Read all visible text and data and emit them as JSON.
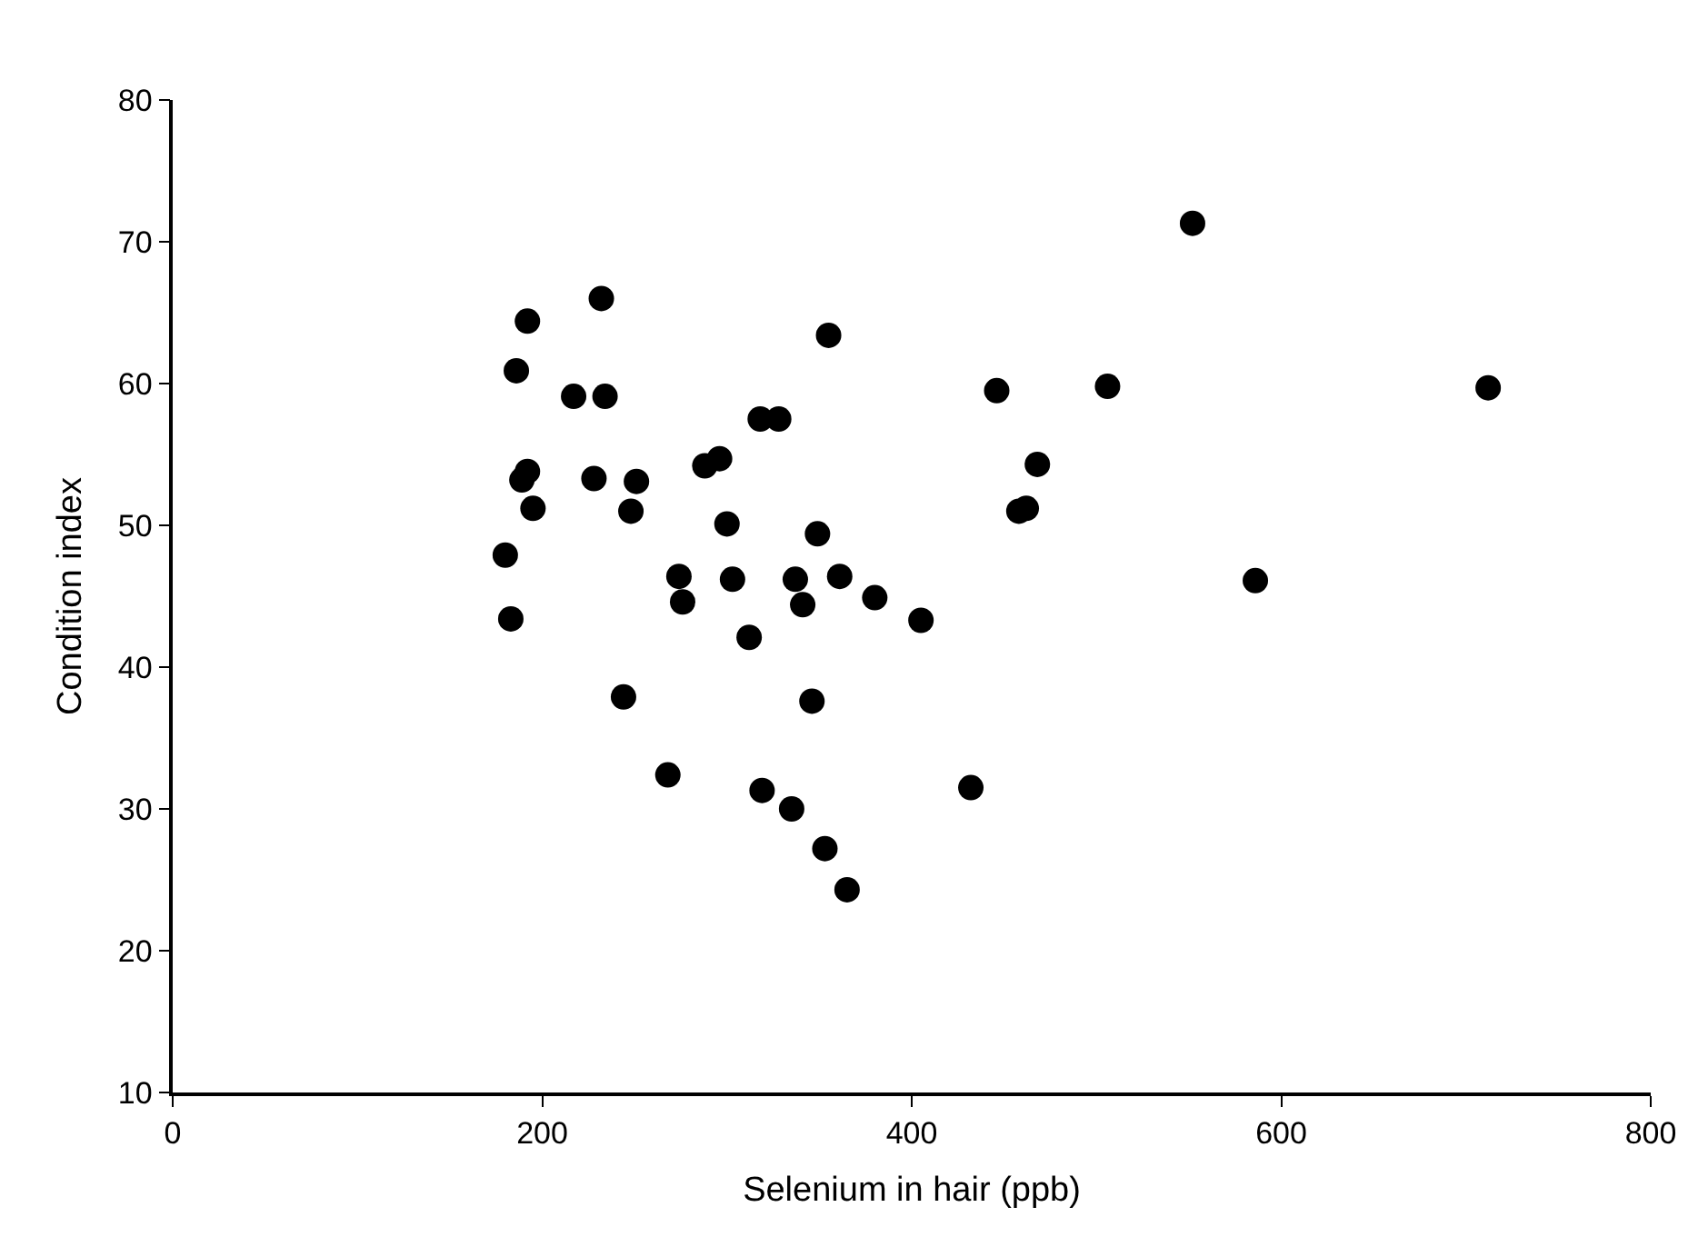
{
  "chart_data": {
    "type": "scatter",
    "xlabel": "Selenium in hair (ppb)",
    "ylabel": "Condition index",
    "xlim": [
      0,
      800
    ],
    "xticks": [
      0,
      200,
      400,
      600,
      800
    ],
    "ylim": [
      10,
      80
    ],
    "yticks": [
      10,
      20,
      30,
      40,
      50,
      60,
      70,
      80
    ],
    "marker": "circle",
    "series": [
      {
        "color": "#000000",
        "x": [
          232,
          192,
          186,
          217,
          234,
          192,
          189,
          228,
          251,
          195,
          248,
          288,
          296,
          300,
          180,
          274,
          276,
          303,
          183,
          312,
          349,
          337,
          341,
          361,
          380,
          244,
          346,
          268,
          319,
          335,
          353,
          365,
          432,
          552,
          355,
          446,
          506,
          712,
          318,
          328,
          468,
          458,
          462,
          405,
          586
        ],
        "values": [
          66.0,
          64.4,
          60.9,
          59.1,
          59.1,
          53.8,
          53.2,
          53.3,
          53.1,
          51.2,
          51.0,
          54.2,
          54.7,
          50.1,
          47.9,
          46.4,
          44.6,
          46.2,
          43.4,
          42.1,
          49.4,
          46.2,
          44.4,
          46.4,
          44.9,
          37.9,
          37.6,
          32.4,
          31.3,
          30.0,
          27.2,
          24.3,
          31.5,
          71.3,
          63.4,
          59.5,
          59.8,
          59.7,
          57.5,
          57.5,
          54.3,
          51.0,
          51.2,
          43.3,
          46.1
        ]
      }
    ]
  }
}
